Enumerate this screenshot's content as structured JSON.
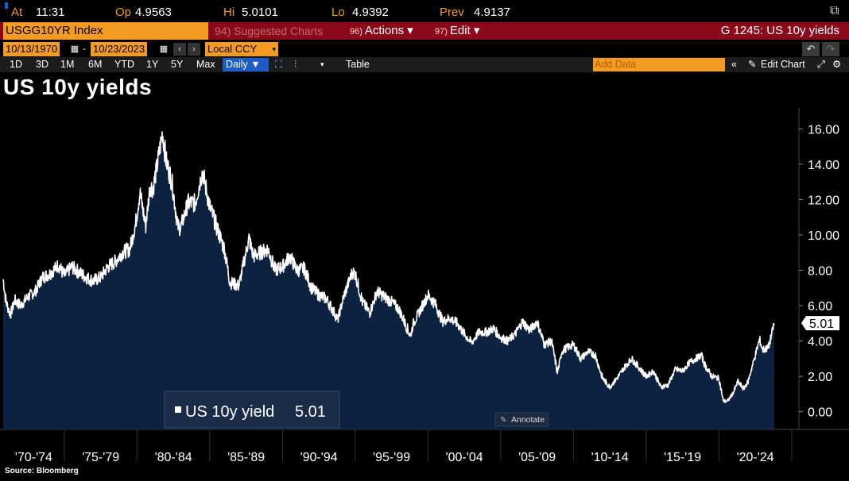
{
  "quote": {
    "at_label": "At",
    "at_value": "11:31",
    "op_label": "Op",
    "op_value": "4.9563",
    "hi_label": "Hi",
    "hi_value": "5.0101",
    "lo_label": "Lo",
    "lo_value": "4.9392",
    "prev_label": "Prev",
    "prev_value": "4.9137"
  },
  "command_bar": {
    "ticker": "USGG10YR Index",
    "suggested_num": "94)",
    "suggested_label": "Suggested Charts",
    "actions_num": "96)",
    "actions_label": "Actions ▾",
    "edit_num": "97)",
    "edit_label": "Edit ▾",
    "graph_title": "G 1245: US 10y yields"
  },
  "date_bar": {
    "start_date": "10/13/1970",
    "separator": "-",
    "end_date": "10/23/2023",
    "currency": "Local CCY"
  },
  "range_bar": {
    "ranges": [
      "1D",
      "3D",
      "1M",
      "6M",
      "YTD",
      "1Y",
      "5Y",
      "Max"
    ],
    "frequency": "Daily ▼",
    "table_label": "Table",
    "add_data_placeholder": "Add Data",
    "edit_chart_label": "Edit Chart"
  },
  "chart_title": "US 10y yields",
  "annotate_label": "Annotate",
  "source": "Source: Bloomberg",
  "colors": {
    "line": "#ffffff",
    "area": "#0d2240",
    "accent": "#f59a23",
    "bar": "#8b0a1a"
  },
  "chart_data": {
    "type": "area",
    "title": "US 10y yields",
    "series": [
      {
        "name": "US 10y yield",
        "last_value": "5.01",
        "x": [
          1970.8,
          1971.0,
          1971.3,
          1971.6,
          1972.0,
          1972.5,
          1973.0,
          1973.5,
          1974.0,
          1974.6,
          1975.0,
          1975.5,
          1976.0,
          1976.5,
          1977.0,
          1977.5,
          1978.0,
          1978.5,
          1979.0,
          1979.5,
          1979.9,
          1980.2,
          1980.6,
          1980.9,
          1981.1,
          1981.4,
          1981.75,
          1982.0,
          1982.4,
          1982.8,
          1983.0,
          1983.5,
          1984.0,
          1984.5,
          1985.0,
          1985.5,
          1986.0,
          1986.4,
          1986.8,
          1987.0,
          1987.3,
          1987.7,
          1988.0,
          1988.5,
          1989.0,
          1989.5,
          1990.0,
          1990.5,
          1991.0,
          1991.5,
          1992.0,
          1992.5,
          1993.0,
          1993.5,
          1993.8,
          1994.2,
          1994.8,
          1995.0,
          1995.5,
          1996.0,
          1996.5,
          1997.0,
          1997.5,
          1998.0,
          1998.8,
          1999.0,
          1999.5,
          2000.0,
          2000.5,
          2001.0,
          2001.5,
          2002.0,
          2002.5,
          2003.0,
          2003.5,
          2004.0,
          2004.5,
          2005.0,
          2005.5,
          2006.0,
          2006.5,
          2007.0,
          2007.5,
          2008.0,
          2008.5,
          2008.9,
          2009.2,
          2009.5,
          2010.0,
          2010.5,
          2011.0,
          2011.5,
          2012.0,
          2012.5,
          2013.0,
          2013.5,
          2014.0,
          2014.5,
          2015.0,
          2015.5,
          2016.0,
          2016.5,
          2017.0,
          2017.5,
          2018.0,
          2018.8,
          2019.0,
          2019.5,
          2020.0,
          2020.3,
          2020.6,
          2021.0,
          2021.3,
          2021.7,
          2022.0,
          2022.4,
          2022.8,
          2023.0,
          2023.4,
          2023.8
        ],
        "values": [
          7.5,
          6.2,
          5.5,
          6.3,
          6.0,
          6.5,
          6.8,
          7.6,
          7.8,
          8.3,
          7.7,
          8.2,
          7.9,
          7.6,
          7.4,
          7.6,
          8.2,
          8.5,
          9.0,
          9.2,
          10.6,
          12.4,
          10.5,
          12.8,
          12.6,
          14.0,
          15.8,
          14.2,
          13.0,
          10.5,
          10.4,
          11.8,
          11.8,
          13.6,
          11.6,
          10.4,
          9.2,
          7.3,
          7.2,
          7.1,
          8.3,
          9.8,
          8.8,
          9.0,
          9.2,
          8.0,
          8.2,
          8.8,
          8.0,
          8.1,
          7.0,
          6.6,
          6.4,
          5.7,
          5.2,
          6.5,
          7.9,
          7.8,
          6.2,
          5.6,
          6.8,
          6.5,
          6.2,
          5.8,
          4.3,
          5.0,
          5.8,
          6.6,
          6.1,
          5.1,
          5.3,
          5.0,
          4.4,
          3.9,
          4.5,
          4.5,
          4.7,
          4.2,
          4.0,
          4.4,
          5.1,
          4.6,
          5.1,
          3.8,
          4.0,
          2.2,
          3.4,
          3.6,
          3.8,
          3.0,
          3.4,
          3.2,
          1.9,
          1.4,
          1.9,
          2.5,
          3.0,
          2.5,
          2.0,
          2.3,
          1.4,
          1.5,
          2.4,
          2.3,
          2.8,
          3.2,
          2.7,
          2.0,
          1.9,
          0.6,
          0.6,
          1.1,
          1.7,
          1.3,
          1.7,
          2.9,
          4.1,
          3.5,
          3.6,
          5.0
        ],
        "color": "#ffffff"
      }
    ],
    "y_ticks": [
      "0.00",
      "2.00",
      "4.00",
      "6.00",
      "8.00",
      "10.00",
      "12.00",
      "14.00",
      "16.00"
    ],
    "ylim": [
      -1,
      17
    ],
    "x_tick_labels": [
      "'70-'74",
      "'75-'79",
      "'80-'84",
      "'85-'89",
      "'90-'94",
      "'95-'99",
      "'00-'04",
      "'05-'09",
      "'10-'14",
      "'15-'19",
      "'20-'24"
    ],
    "xlim": [
      1970.8,
      2025.5
    ],
    "grid": "vertical",
    "legend": "bottom-left"
  }
}
